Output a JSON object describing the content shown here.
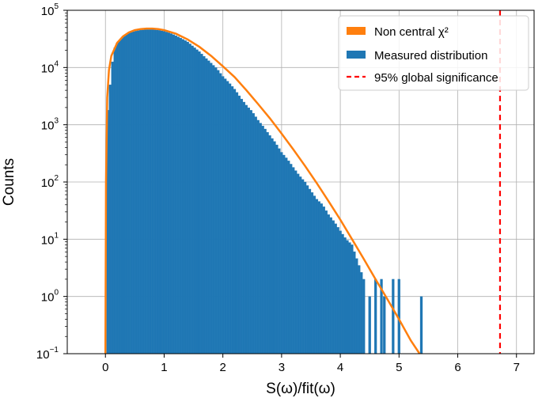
{
  "chart_data": {
    "type": "bar",
    "xlabel": "S(ω)/fit(ω)",
    "ylabel": "Counts",
    "xlim": [
      -0.65,
      7.3
    ],
    "ylim_log10": [
      -1,
      5
    ],
    "yscale": "log",
    "grid": true,
    "legend_placement": "top-right",
    "x_ticks": [
      "0",
      "1",
      "2",
      "3",
      "4",
      "5",
      "6",
      "7"
    ],
    "y_ticks": [
      {
        "base": "10",
        "exp": "−1"
      },
      {
        "base": "10",
        "exp": "0"
      },
      {
        "base": "10",
        "exp": "1"
      },
      {
        "base": "10",
        "exp": "2"
      },
      {
        "base": "10",
        "exp": "3"
      },
      {
        "base": "10",
        "exp": "4"
      },
      {
        "base": "10",
        "exp": "5"
      }
    ],
    "histogram": {
      "name": "Measured distribution",
      "color": "#1f77b4",
      "bin_width": 0.04,
      "points": [
        [
          0.04,
          1800
        ],
        [
          0.08,
          5000
        ],
        [
          0.14,
          20000
        ],
        [
          0.2,
          27000
        ],
        [
          0.3,
          34000
        ],
        [
          0.4,
          40000
        ],
        [
          0.5,
          43000
        ],
        [
          0.6,
          45000
        ],
        [
          0.7,
          46000
        ],
        [
          0.8,
          46000
        ],
        [
          0.9,
          45000
        ],
        [
          1.0,
          43000
        ],
        [
          1.1,
          40000
        ],
        [
          1.2,
          36000
        ],
        [
          1.3,
          32000
        ],
        [
          1.4,
          28000
        ],
        [
          1.5,
          23000
        ],
        [
          1.6,
          19000
        ],
        [
          1.7,
          15000
        ],
        [
          1.8,
          12000
        ],
        [
          1.9,
          9500
        ],
        [
          2.0,
          7000
        ],
        [
          2.1,
          5500
        ],
        [
          2.2,
          4200
        ],
        [
          2.3,
          3000
        ],
        [
          2.4,
          2200
        ],
        [
          2.5,
          1700
        ],
        [
          2.6,
          1200
        ],
        [
          2.7,
          900
        ],
        [
          2.8,
          650
        ],
        [
          2.9,
          480
        ],
        [
          3.0,
          330
        ],
        [
          3.1,
          250
        ],
        [
          3.2,
          180
        ],
        [
          3.3,
          130
        ],
        [
          3.4,
          100
        ],
        [
          3.5,
          70
        ],
        [
          3.6,
          50
        ],
        [
          3.7,
          40
        ],
        [
          3.8,
          27
        ],
        [
          3.9,
          20
        ],
        [
          4.0,
          14
        ],
        [
          4.1,
          10
        ],
        [
          4.2,
          8
        ],
        [
          4.3,
          4
        ],
        [
          4.4,
          2
        ],
        [
          4.5,
          1
        ],
        [
          4.6,
          2
        ],
        [
          4.7,
          2
        ],
        [
          4.75,
          1
        ],
        [
          4.9,
          2
        ],
        [
          5.0,
          2
        ],
        [
          5.38,
          1
        ]
      ]
    },
    "curve": {
      "name": "Non central χ²",
      "color": "#ff7f0e",
      "points": [
        [
          0.0,
          0.1
        ],
        [
          0.01,
          100
        ],
        [
          0.03,
          3000
        ],
        [
          0.06,
          9000
        ],
        [
          0.1,
          16000
        ],
        [
          0.2,
          27000
        ],
        [
          0.3,
          35000
        ],
        [
          0.4,
          41000
        ],
        [
          0.5,
          45000
        ],
        [
          0.6,
          47000
        ],
        [
          0.7,
          48000
        ],
        [
          0.8,
          48000
        ],
        [
          0.9,
          47000
        ],
        [
          1.0,
          45000
        ],
        [
          1.2,
          39000
        ],
        [
          1.4,
          31000
        ],
        [
          1.6,
          23000
        ],
        [
          1.8,
          16000
        ],
        [
          2.0,
          10500
        ],
        [
          2.2,
          6800
        ],
        [
          2.4,
          4000
        ],
        [
          2.6,
          2300
        ],
        [
          2.8,
          1300
        ],
        [
          3.0,
          700
        ],
        [
          3.2,
          370
        ],
        [
          3.4,
          190
        ],
        [
          3.6,
          95
        ],
        [
          3.8,
          46
        ],
        [
          4.0,
          22
        ],
        [
          4.2,
          10
        ],
        [
          4.4,
          4.5
        ],
        [
          4.6,
          2
        ],
        [
          4.8,
          0.9
        ],
        [
          5.0,
          0.4
        ],
        [
          5.2,
          0.17
        ],
        [
          5.35,
          0.1
        ]
      ]
    },
    "threshold": {
      "name": "95% global significance",
      "x": 6.72,
      "color": "#ff0000"
    }
  }
}
